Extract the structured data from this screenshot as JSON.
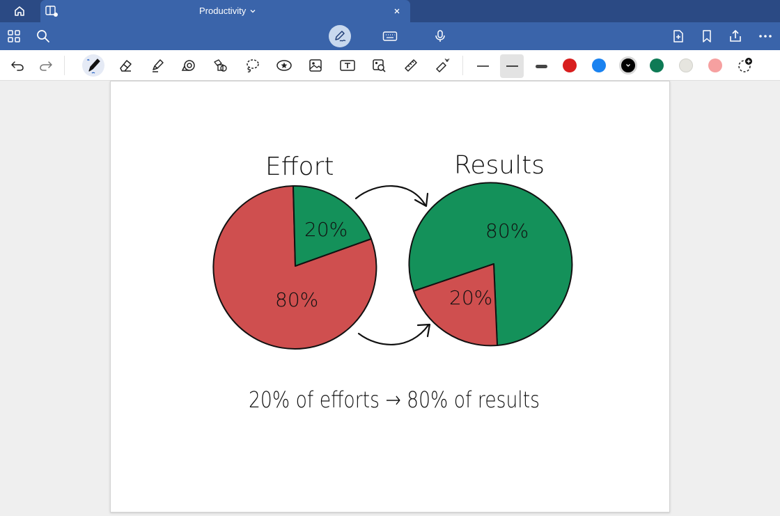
{
  "tabbar": {
    "tab_title": "Productivity"
  },
  "icons": {
    "home": "home-icon",
    "split": "split-view-icon",
    "chevron": "chevron-down-icon",
    "close": "close-icon",
    "grid": "grid-icon",
    "search": "search-icon",
    "pen_mode": "pen-mode-icon",
    "keyboard": "keyboard-icon",
    "mic": "microphone-icon",
    "add_page": "add-page-icon",
    "bookmark": "bookmark-icon",
    "share": "share-icon",
    "more": "more-icon"
  },
  "tools": [
    "undo",
    "redo",
    "pen",
    "eraser",
    "highlighter",
    "tape",
    "shapes",
    "lasso",
    "sticker",
    "image",
    "text",
    "image-search",
    "ruler",
    "laser-pointer"
  ],
  "colors": {
    "tab_bar": "#2b4a84",
    "toolbar": "#3a64aa",
    "swatches": [
      "#d81e1e",
      "#1a82f0",
      "#000000",
      "#0e7a55",
      "#e6e5df",
      "#f6a0a0"
    ],
    "effort_big": "#cf4f4f",
    "effort_small": "#14915a"
  },
  "canvas": {
    "effort_title": "Effort",
    "results_title": "Results",
    "effort_small_label": "20%",
    "effort_big_label": "80%",
    "results_big_label": "80%",
    "results_small_label": "20%",
    "caption": "20% of efforts → 80% of results"
  }
}
